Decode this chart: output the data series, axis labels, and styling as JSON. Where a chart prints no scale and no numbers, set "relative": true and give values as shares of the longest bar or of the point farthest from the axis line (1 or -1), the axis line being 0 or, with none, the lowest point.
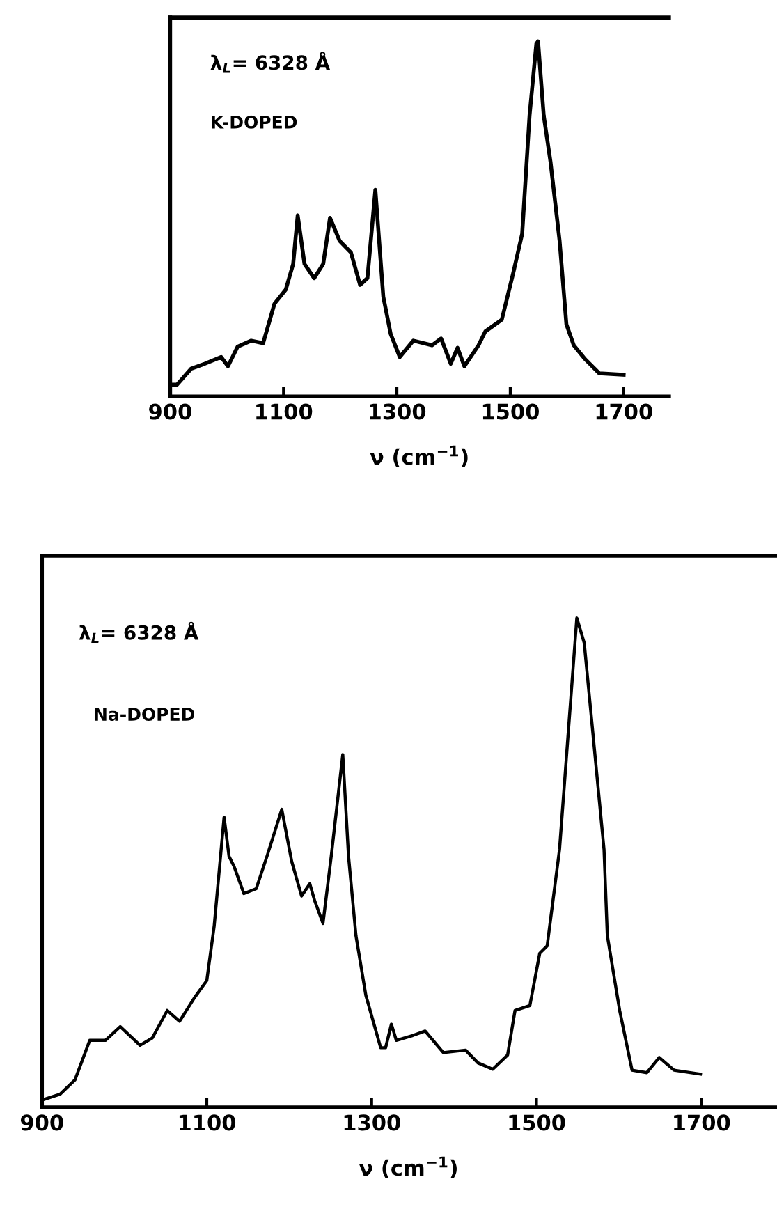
{
  "chart_data": [
    {
      "type": "line",
      "relative": true,
      "xlabel": "ν (cm$^{−1}$)",
      "annotations": [
        "λ$_{L}$= 6328 Å",
        "K-DOPED"
      ],
      "xlim": [
        900,
        1780
      ],
      "xticks": [
        900,
        1100,
        1300,
        1500,
        1700
      ],
      "tick_labels": "x",
      "grid": false,
      "marker": "none",
      "line_style": "solid",
      "series": [
        {
          "color": "#000000",
          "x": [
            900,
            912,
            937,
            961,
            990,
            1002,
            1019,
            1043,
            1064,
            1084,
            1104,
            1117,
            1125,
            1137,
            1154,
            1170,
            1182,
            1199,
            1219,
            1235,
            1248,
            1262,
            1276,
            1289,
            1305,
            1329,
            1362,
            1378,
            1395,
            1407,
            1419,
            1444,
            1456,
            1485,
            1505,
            1521,
            1534,
            1546,
            1549,
            1559,
            1571,
            1587,
            1599,
            1612,
            1632,
            1657,
            1700
          ],
          "values": [
            0.033,
            0.033,
            0.078,
            0.092,
            0.111,
            0.085,
            0.14,
            0.157,
            0.15,
            0.261,
            0.301,
            0.373,
            0.51,
            0.373,
            0.333,
            0.373,
            0.503,
            0.438,
            0.405,
            0.314,
            0.333,
            0.582,
            0.281,
            0.176,
            0.111,
            0.157,
            0.144,
            0.163,
            0.092,
            0.137,
            0.085,
            0.144,
            0.183,
            0.216,
            0.346,
            0.458,
            0.791,
            0.993,
            1.0,
            0.791,
            0.66,
            0.438,
            0.203,
            0.144,
            0.105,
            0.065,
            0.061
          ]
        }
      ]
    },
    {
      "type": "line",
      "relative": true,
      "xlabel": "ν (cm$^{−1}$)",
      "annotations": [
        "λ$_{L}$= 6328 Å",
        "Na-DOPED"
      ],
      "xlim": [
        900,
        1790
      ],
      "xticks": [
        900,
        1100,
        1300,
        1500,
        1700
      ],
      "tick_labels": "x",
      "grid": false,
      "marker": "none",
      "line_style": "solid",
      "series": [
        {
          "color": "#000000",
          "x": [
            900,
            922,
            940,
            958,
            977,
            995,
            1019,
            1034,
            1052,
            1067,
            1085,
            1100,
            1109,
            1121,
            1127,
            1133,
            1145,
            1160,
            1173,
            1191,
            1203,
            1215,
            1225,
            1231,
            1241,
            1251,
            1265,
            1272,
            1281,
            1293,
            1311,
            1317,
            1324,
            1330,
            1350,
            1365,
            1387,
            1414,
            1429,
            1447,
            1465,
            1474,
            1492,
            1504,
            1513,
            1528,
            1549,
            1558,
            1582,
            1586,
            1601,
            1616,
            1634,
            1649,
            1667,
            1699
          ],
          "values": [
            0.015,
            0.027,
            0.056,
            0.137,
            0.137,
            0.165,
            0.127,
            0.142,
            0.198,
            0.176,
            0.224,
            0.259,
            0.371,
            0.593,
            0.513,
            0.493,
            0.437,
            0.447,
            0.513,
            0.609,
            0.503,
            0.432,
            0.457,
            0.422,
            0.376,
            0.513,
            0.721,
            0.513,
            0.351,
            0.229,
            0.122,
            0.122,
            0.17,
            0.137,
            0.147,
            0.156,
            0.112,
            0.117,
            0.091,
            0.078,
            0.107,
            0.198,
            0.208,
            0.315,
            0.33,
            0.527,
            1.0,
            0.949,
            0.527,
            0.351,
            0.198,
            0.076,
            0.071,
            0.102,
            0.076,
            0.068
          ]
        }
      ]
    }
  ]
}
